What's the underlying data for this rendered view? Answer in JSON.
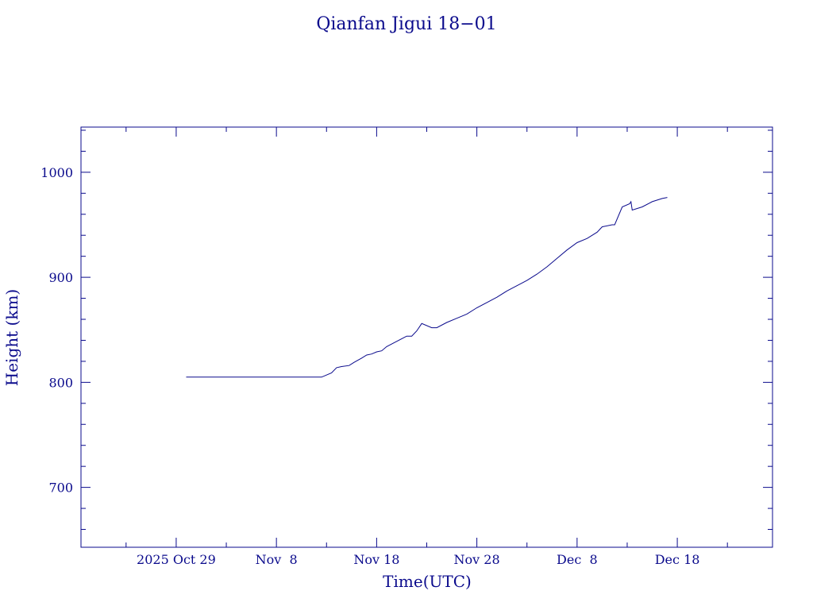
{
  "chart_data": {
    "type": "line",
    "title": "Qianfan Jigui 18−01",
    "xlabel": "Time(UTC)",
    "ylabel": "Height (km)",
    "ylim": [
      643,
      1043
    ],
    "xlim": [
      "2025-10-19T12:00",
      "2025-12-27T12:00"
    ],
    "y_major_ticks": [
      700,
      800,
      900,
      1000
    ],
    "y_minor_step": 20,
    "x_major_ticks": [
      {
        "date": "2025-10-29",
        "label": "2025 Oct 29"
      },
      {
        "date": "2025-11-08",
        "label": "Nov  8"
      },
      {
        "date": "2025-11-18",
        "label": "Nov 18"
      },
      {
        "date": "2025-11-28",
        "label": "Nov 28"
      },
      {
        "date": "2025-12-08",
        "label": "Dec  8"
      },
      {
        "date": "2025-12-18",
        "label": "Dec 18"
      }
    ],
    "grid": false,
    "line_color": "#0a0a8c",
    "series": [
      {
        "x": [
          "2025-10-30T00:00",
          "2025-11-12T12:00",
          "2025-11-13T12:00",
          "2025-11-14T00:00",
          "2025-11-14T12:00",
          "2025-11-15T06:00",
          "2025-11-15T18:00",
          "2025-11-16T12:00",
          "2025-11-17T00:00",
          "2025-11-17T12:00",
          "2025-11-18T00:00",
          "2025-11-18T12:00",
          "2025-11-19T00:00",
          "2025-11-20T00:00",
          "2025-11-21T00:00",
          "2025-11-21T12:00",
          "2025-11-22T00:00",
          "2025-11-22T12:00",
          "2025-11-23T12:00",
          "2025-11-24T00:00",
          "2025-11-25T00:00",
          "2025-11-26T00:00",
          "2025-11-27T00:00",
          "2025-11-28T00:00",
          "2025-11-29T00:00",
          "2025-11-30T00:00",
          "2025-12-01T00:00",
          "2025-12-02T00:00",
          "2025-12-03T00:00",
          "2025-12-04T00:00",
          "2025-12-05T00:00",
          "2025-12-06T00:00",
          "2025-12-07T00:00",
          "2025-12-08T00:00",
          "2025-12-09T00:00",
          "2025-12-10T00:00",
          "2025-12-10T12:00",
          "2025-12-11T12:00",
          "2025-12-11T18:00",
          "2025-12-12T12:00",
          "2025-12-13T06:00",
          "2025-12-13T09:00",
          "2025-12-13T12:00",
          "2025-12-14T12:00",
          "2025-12-15T12:00",
          "2025-12-16T12:00",
          "2025-12-17T00:00"
        ],
        "y": [
          805,
          805,
          809,
          814,
          815,
          816,
          819,
          823,
          826,
          827,
          829,
          830,
          834,
          839,
          844,
          844,
          849,
          856,
          852,
          852,
          857,
          861,
          865,
          871,
          876,
          881,
          887,
          892,
          897,
          903,
          910,
          918,
          926,
          933,
          937,
          943,
          948,
          950,
          950,
          967,
          970,
          972,
          964,
          967,
          972,
          975,
          976
        ]
      }
    ]
  }
}
